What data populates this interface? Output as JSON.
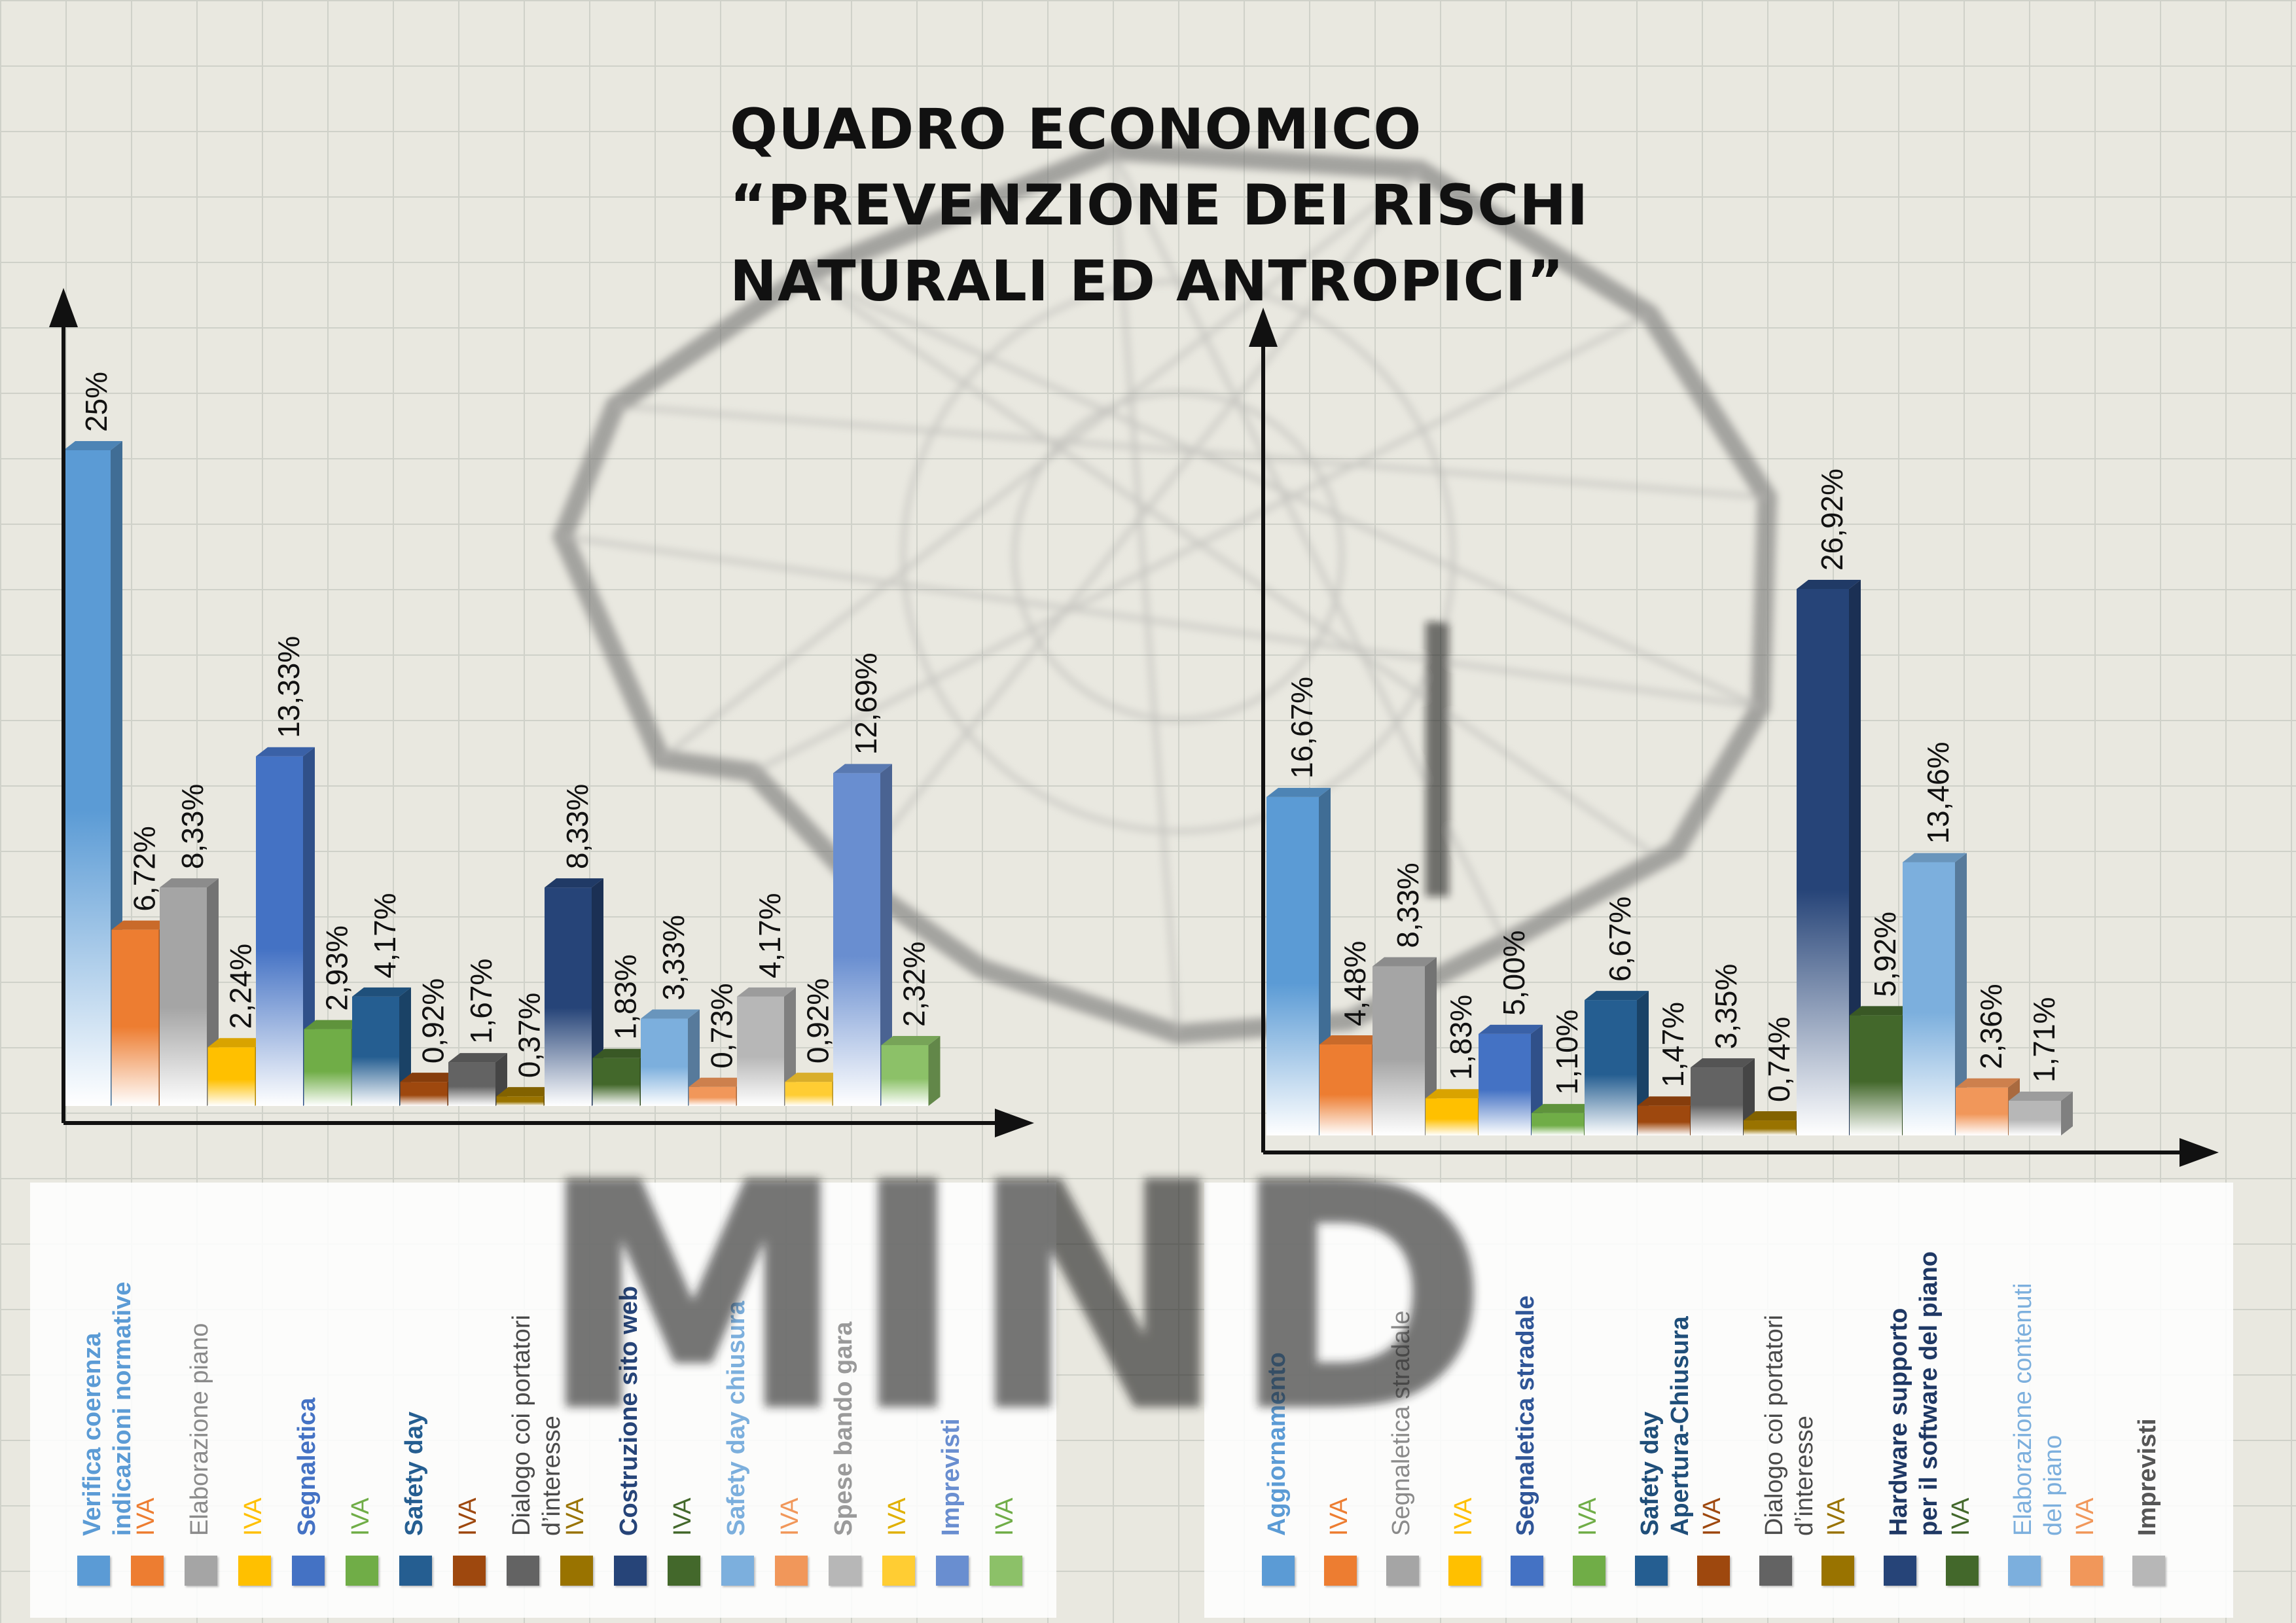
{
  "title": {
    "line1": "QUADRO ECONOMICO",
    "line2": "“PREVENZIONE DEI RISCHI",
    "line3": "NATURALI  ED ANTROPICI”"
  },
  "watermark_text": "MIND",
  "chart_data": [
    {
      "type": "bar",
      "title": "",
      "xlabel": "",
      "ylabel": "",
      "ylim": [
        0,
        25
      ],
      "grid": false,
      "legend_position": "bottom",
      "categories": [
        "Verifica coerenza\nindicazioni normative",
        "IVA",
        "Elaborazione piano",
        "IVA",
        "Segnaletica",
        "IVA",
        "Safety day",
        "IVA",
        "Dialogo coi portatori\nd’interesse",
        "IVA",
        "Costruzione sito web",
        "IVA",
        "Safety day chiusura",
        "IVA",
        "Spese bando gara",
        "IVA",
        "Imprevisti",
        "IVA"
      ],
      "values": [
        25,
        6.72,
        8.33,
        2.24,
        13.33,
        2.93,
        4.17,
        0.92,
        1.67,
        0.37,
        8.33,
        1.83,
        3.33,
        0.73,
        4.17,
        0.92,
        12.69,
        2.32
      ],
      "value_labels": [
        "25%",
        "6,72%",
        "8,33%",
        "2,24%",
        "13,33%",
        "2,93%",
        "4,17%",
        "0,92%",
        "1,67%",
        "0,37%",
        "8,33%",
        "1,83%",
        "3,33%",
        "0,73%",
        "4,17%",
        "0,92%",
        "12,69%",
        "2,32%"
      ],
      "colors": [
        "#5b9bd5",
        "#ed7d31",
        "#a5a5a5",
        "#ffc000",
        "#4472c4",
        "#70ad47",
        "#255e91",
        "#9e480e",
        "#636363",
        "#997300",
        "#264478",
        "#43682b",
        "#7cafdd",
        "#f1975a",
        "#b7b7b7",
        "#ffcd33",
        "#698ed0",
        "#8cc168"
      ],
      "legend_swatch_colors": [
        "#5b9bd5",
        "#ed7d31",
        "#a5a5a5",
        "#ffc000",
        "#4472c4",
        "#70ad47",
        "#255e91",
        "#9e480e",
        "#636363",
        "#997300",
        "#264478",
        "#43682b",
        "#7cafdd",
        "#f1975a",
        "#b7b7b7",
        "#ffcd33",
        "#698ed0",
        "#8cc168"
      ],
      "legend_text_colors": [
        "#5b9bd5",
        "#ed7d31",
        "#8a8a8a",
        "#ffc000",
        "#4472c4",
        "#70ad47",
        "#255e91",
        "#9e480e",
        "#4a4a4a",
        "#997300",
        "#264478",
        "#43682b",
        "#7cafdd",
        "#f1975a",
        "#9a9a9a",
        "#e0b000",
        "#698ed0",
        "#70ad47"
      ],
      "legend_bold": [
        true,
        false,
        false,
        false,
        true,
        false,
        true,
        false,
        false,
        false,
        true,
        false,
        true,
        false,
        true,
        false,
        true,
        false
      ]
    },
    {
      "type": "bar",
      "title": "",
      "xlabel": "",
      "ylabel": "",
      "ylim": [
        0,
        26.92
      ],
      "grid": false,
      "legend_position": "bottom",
      "categories": [
        "Aggiornamento",
        "IVA",
        "Segnaletica stradale",
        "IVA",
        "Segnaletica stradale",
        "IVA",
        "Safety day\nApertura-Chiusura",
        "IVA",
        "Dialogo coi portatori\nd’interesse",
        "IVA",
        "Hardware supporto\nper il software del piano",
        "IVA",
        "Elaborazione contenuti\ndel piano",
        "IVA",
        "Imprevisti"
      ],
      "values": [
        16.67,
        4.48,
        8.33,
        1.83,
        5.0,
        1.1,
        6.67,
        1.47,
        3.35,
        0.74,
        26.92,
        5.92,
        13.46,
        2.36,
        1.71
      ],
      "value_labels": [
        "16,67%",
        "4,48%",
        "8,33%",
        "1,83%",
        "5,00%",
        "1,10%",
        "6,67%",
        "1,47%",
        "3,35%",
        "0,74%",
        "26,92%",
        "5,92%",
        "13,46%",
        "2,36%",
        "1,71%"
      ],
      "colors": [
        "#5b9bd5",
        "#ed7d31",
        "#a5a5a5",
        "#ffc000",
        "#4472c4",
        "#70ad47",
        "#255e91",
        "#9e480e",
        "#636363",
        "#997300",
        "#264478",
        "#43682b",
        "#7cafdd",
        "#f1975a",
        "#b7b7b7"
      ],
      "legend_swatch_colors": [
        "#5b9bd5",
        "#ed7d31",
        "#a5a5a5",
        "#ffc000",
        "#4472c4",
        "#70ad47",
        "#255e91",
        "#9e480e",
        "#636363",
        "#997300",
        "#264478",
        "#43682b",
        "#7cafdd",
        "#f1975a",
        "#b7b7b7"
      ],
      "legend_text_colors": [
        "#5b9bd5",
        "#ed7d31",
        "#8a8a8a",
        "#ffc000",
        "#2f5597",
        "#70ad47",
        "#1f4e79",
        "#9e480e",
        "#4a4a4a",
        "#997300",
        "#1f3864",
        "#43682b",
        "#7cafdd",
        "#f1975a",
        "#555555"
      ],
      "legend_bold": [
        true,
        false,
        false,
        false,
        true,
        false,
        true,
        false,
        false,
        false,
        true,
        false,
        false,
        false,
        true
      ]
    }
  ]
}
